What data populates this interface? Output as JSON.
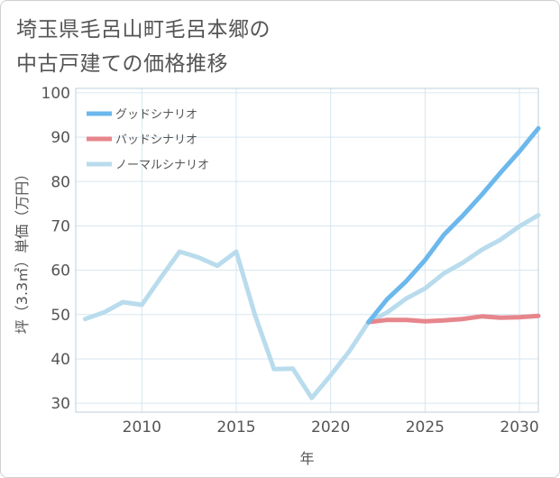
{
  "page": {
    "title_line1": "埼玉県毛呂山町毛呂本郷の",
    "title_line2": "中古戸建ての価格推移"
  },
  "chart_data": {
    "type": "line",
    "title": "埼玉県毛呂山町毛呂本郷の中古戸建ての価格推移",
    "xlabel": "年",
    "ylabel": "坪（3.3㎡）単価（万円）",
    "xlim": [
      2006.5,
      2031
    ],
    "ylim": [
      28,
      101
    ],
    "xticks": [
      2010,
      2015,
      2020,
      2025,
      2030
    ],
    "yticks": [
      30,
      40,
      50,
      60,
      70,
      80,
      90,
      100
    ],
    "grid": true,
    "legend_position": "top-left",
    "series": [
      {
        "name": "グッドシナリオ",
        "color": "#6cb8ec",
        "x": [
          2022,
          2023,
          2024,
          2025,
          2026,
          2027,
          2028,
          2029,
          2030,
          2031
        ],
        "values": [
          48.3,
          53.5,
          57.5,
          62.3,
          68.0,
          72.3,
          77.0,
          82.0,
          86.8,
          92.0
        ]
      },
      {
        "name": "バッドシナリオ",
        "color": "#e6868c",
        "x": [
          2022,
          2023,
          2024,
          2025,
          2026,
          2027,
          2028,
          2029,
          2030,
          2031
        ],
        "values": [
          48.3,
          48.8,
          48.8,
          48.5,
          48.7,
          49.0,
          49.6,
          49.3,
          49.4,
          49.7
        ]
      },
      {
        "name": "ノーマルシナリオ",
        "color": "#b9dced",
        "x": [
          2007,
          2008,
          2009,
          2010,
          2011,
          2012,
          2013,
          2014,
          2015,
          2016,
          2017,
          2018,
          2019,
          2020,
          2021,
          2022,
          2023,
          2024,
          2025,
          2026,
          2027,
          2028,
          2029,
          2030,
          2031
        ],
        "values": [
          49.0,
          50.5,
          52.8,
          52.2,
          58.3,
          64.2,
          62.9,
          61.0,
          64.2,
          49.8,
          37.7,
          37.8,
          31.2,
          36.3,
          41.8,
          48.3,
          50.5,
          53.6,
          55.9,
          59.3,
          61.7,
          64.6,
          66.9,
          69.9,
          72.4
        ]
      }
    ]
  }
}
